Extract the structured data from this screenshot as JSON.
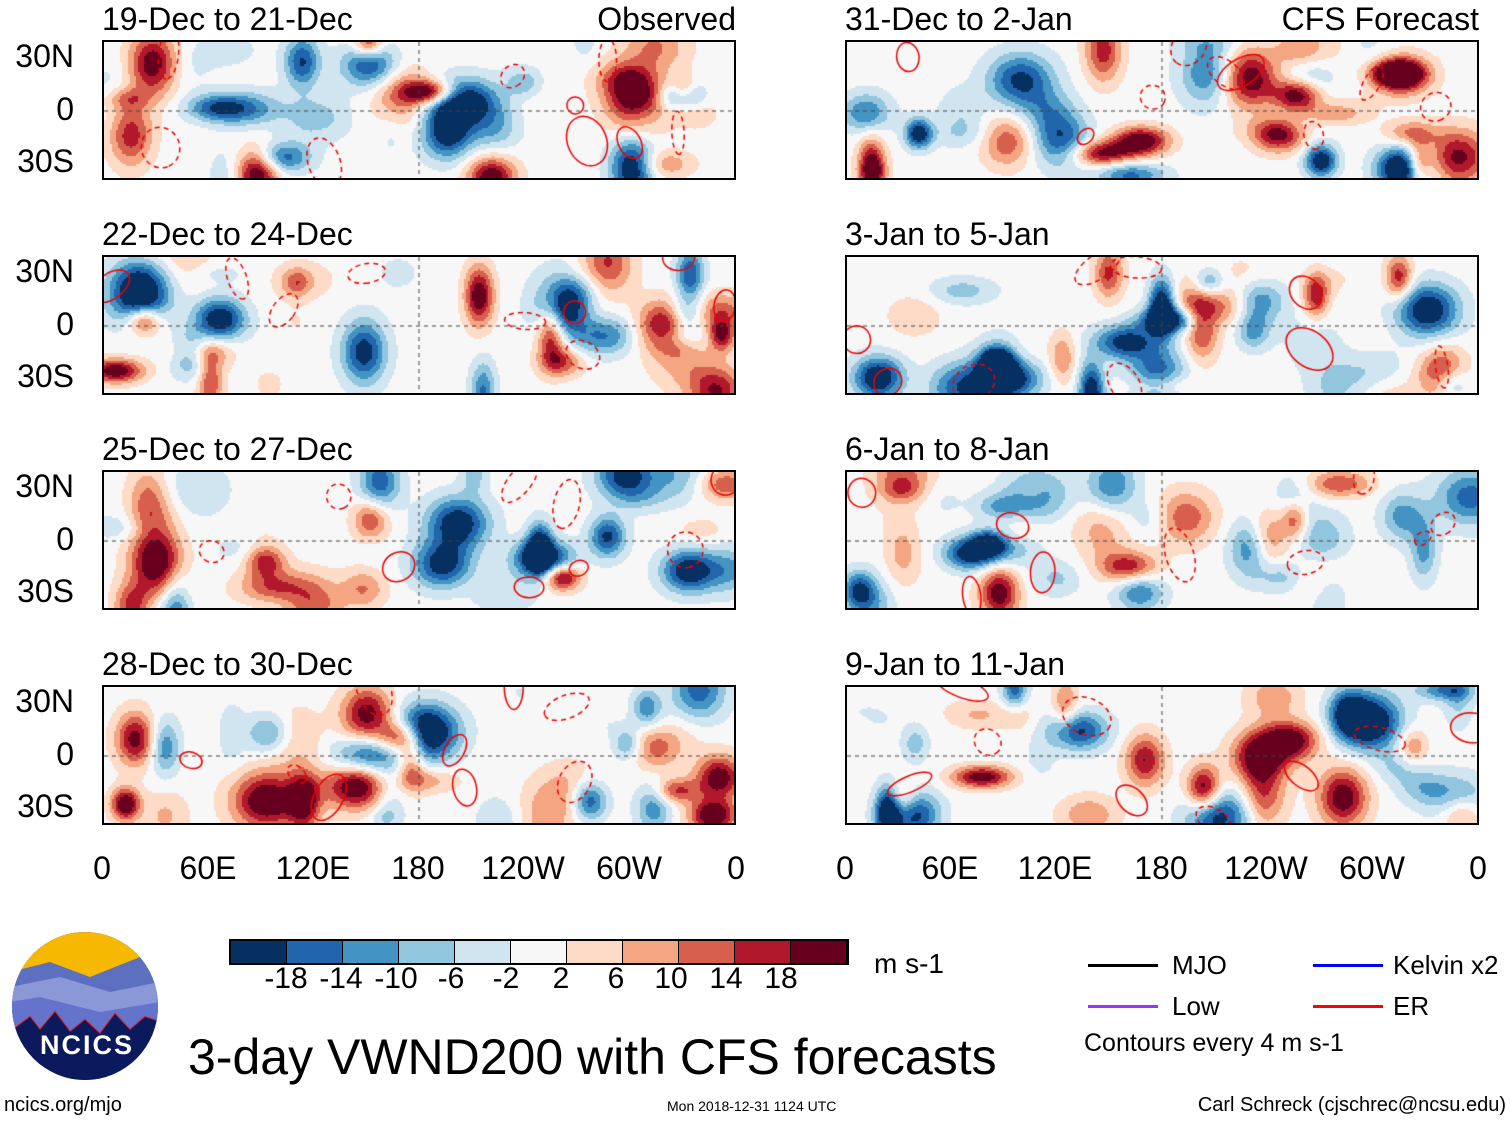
{
  "panels_left_header": "Observed",
  "panels_right_header": "CFS Forecast",
  "panels": [
    {
      "title": "19-Dec to 21-Dec",
      "column": "left",
      "row": 0
    },
    {
      "title": "22-Dec to 24-Dec",
      "column": "left",
      "row": 1
    },
    {
      "title": "25-Dec to 27-Dec",
      "column": "left",
      "row": 2
    },
    {
      "title": "28-Dec to 30-Dec",
      "column": "left",
      "row": 3
    },
    {
      "title": "31-Dec to 2-Jan",
      "column": "right",
      "row": 0
    },
    {
      "title": "3-Jan to 5-Jan",
      "column": "right",
      "row": 1
    },
    {
      "title": "6-Jan to 8-Jan",
      "column": "right",
      "row": 2
    },
    {
      "title": "9-Jan to 11-Jan",
      "column": "right",
      "row": 3
    }
  ],
  "lat_labels": [
    "30N",
    "0",
    "30S"
  ],
  "lon_labels": [
    "0",
    "60E",
    "120E",
    "180",
    "120W",
    "60W",
    "0"
  ],
  "colorbar": {
    "colors": [
      "#053061",
      "#2166ac",
      "#4393c3",
      "#92c5de",
      "#d1e5f0",
      "#f7f7f7",
      "#fddbc7",
      "#f4a582",
      "#d6604d",
      "#b2182b",
      "#67001f"
    ],
    "labels": [
      "-18",
      "-14",
      "-10",
      "-6",
      "-2",
      "2",
      "6",
      "10",
      "14",
      "18"
    ],
    "units": "m s-1"
  },
  "legend": {
    "items": [
      {
        "label": "MJO",
        "color": "#000000"
      },
      {
        "label": "Kelvin x2",
        "color": "#0000ff"
      },
      {
        "label": "Low",
        "color": "#9933ff"
      },
      {
        "label": "ER",
        "color": "#ff0000"
      }
    ],
    "note": "Contours every 4 m s-1"
  },
  "title": "3-day VWND200 with CFS forecasts",
  "logo_text": "NCICS",
  "footer": {
    "left": "ncics.org/mjo",
    "center": "Mon 2018-12-31 1124 UTC",
    "right": "Carl Schreck (cjschrec@ncsu.edu)"
  }
}
